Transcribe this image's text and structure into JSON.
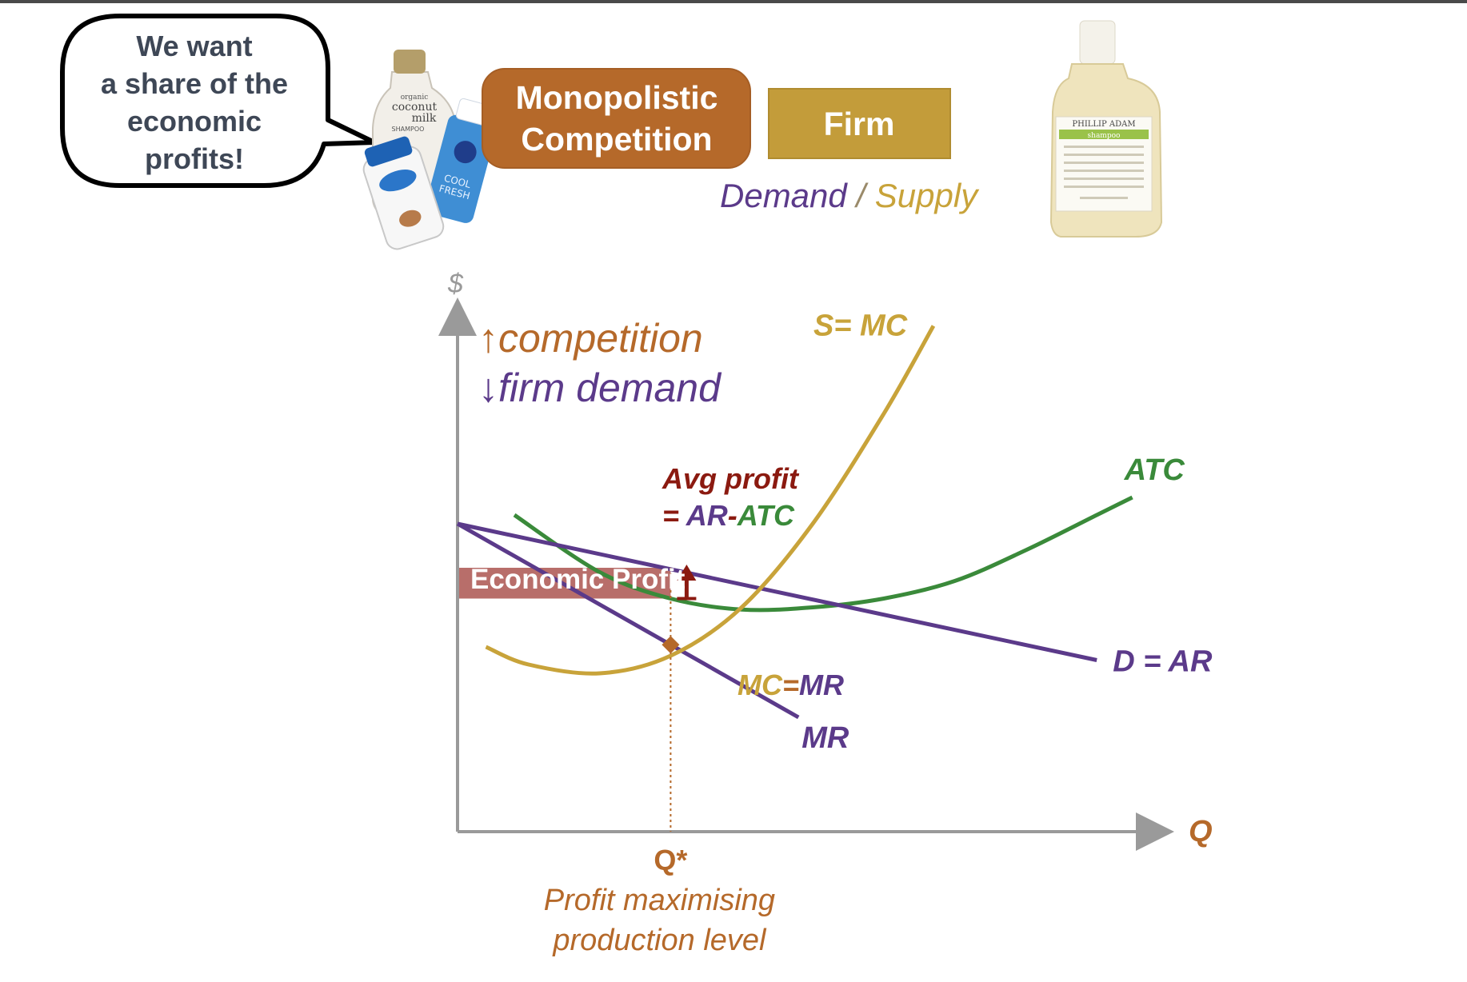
{
  "speech_bubble": {
    "lines": [
      "We want",
      "a share of the",
      "economic",
      "profits!"
    ]
  },
  "products_left": {
    "bottle_text": [
      "organic",
      "coconut",
      "milk",
      "SHAMPOO"
    ],
    "blue_bottle_text": [
      "COOL",
      "FRESH"
    ]
  },
  "header": {
    "market_lines": [
      "Monopolistic",
      "Competition"
    ],
    "firm_label": "Firm",
    "demand_word": "Demand",
    "slash": " / ",
    "supply_word": "Supply"
  },
  "product_right": {
    "brand": "PHILLIP ADAM",
    "type": "shampoo"
  },
  "chart_data": {
    "type": "line",
    "ylabel": "$",
    "xlabel": "Q",
    "series": [
      {
        "name": "S= MC",
        "points": [
          [
            0.4,
            4.2
          ],
          [
            1.0,
            3.8
          ],
          [
            2.0,
            3.6
          ],
          [
            3.0,
            4.0
          ],
          [
            4.0,
            5.1
          ],
          [
            5.0,
            7.0
          ],
          [
            6.0,
            9.5
          ],
          [
            6.7,
            11.5
          ]
        ]
      },
      {
        "name": "ATC",
        "points": [
          [
            0.8,
            7.2
          ],
          [
            2.0,
            5.9
          ],
          [
            3.0,
            5.3
          ],
          [
            4.0,
            5.05
          ],
          [
            5.0,
            5.1
          ],
          [
            6.0,
            5.3
          ],
          [
            7.0,
            5.7
          ],
          [
            8.0,
            6.4
          ],
          [
            9.0,
            7.2
          ],
          [
            9.5,
            7.6
          ]
        ]
      },
      {
        "name": "D  = AR",
        "points": [
          [
            0,
            7.0
          ],
          [
            9.0,
            3.9
          ]
        ]
      },
      {
        "name": "MR",
        "points": [
          [
            0,
            7.0
          ],
          [
            4.8,
            2.6
          ]
        ]
      }
    ],
    "q_star": 3.0,
    "price_at_q_star": 6.0,
    "atc_at_q_star": 5.3,
    "annotations": {
      "competition_arrow": "↑",
      "competition": "competition",
      "demand_arrow": "↓",
      "demand": "firm demand",
      "avg_profit": "Avg profit",
      "eq_prefix": "= ",
      "eq_ar": "AR",
      "eq_dash": "-",
      "eq_atc": "ATC",
      "economic_profit": "Economic Profit",
      "mc_label": "MC",
      "eq_sign": "=",
      "mr_label": "MR",
      "mr_curve_label": "MR",
      "q_star_label": "Q*",
      "pml_line1": "Profit maximising",
      "pml_line2": "production level"
    }
  },
  "colors": {
    "gold": "#C8A33A",
    "purple": "#5B3A8A",
    "green": "#3A8A3A",
    "orange": "#B5692A",
    "maroon": "#8B1A10",
    "profit_fill": "#B86E6A",
    "firm_box": "#C39C3A",
    "bubble_border": "#000000"
  }
}
